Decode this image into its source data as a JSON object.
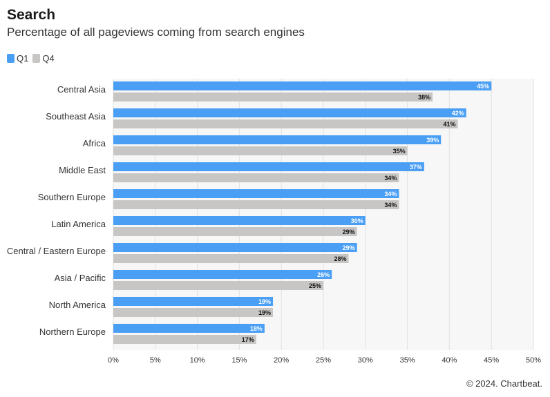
{
  "header": {
    "title": "Search",
    "subtitle": "Percentage of all pageviews coming from search engines"
  },
  "footer": {
    "credit": "© 2024. Chartbeat."
  },
  "colors": {
    "q1": "#4a9ff5",
    "q4": "#c8c6c4",
    "plot_bg": "#f7f7f7",
    "grid": "#e2e2e2"
  },
  "chart_data": {
    "type": "bar",
    "orientation": "horizontal",
    "title": "Search",
    "subtitle": "Percentage of all pageviews coming from search engines",
    "categories": [
      "Central Asia",
      "Southeast Asia",
      "Africa",
      "Middle East",
      "Southern Europe",
      "Latin America",
      "Central / Eastern Europe",
      "Asia / Pacific",
      "North America",
      "Northern Europe"
    ],
    "series": [
      {
        "name": "Q1",
        "color": "#4a9ff5",
        "values": [
          45,
          42,
          39,
          37,
          34,
          30,
          29,
          26,
          19,
          18
        ]
      },
      {
        "name": "Q4",
        "color": "#c8c6c4",
        "values": [
          38,
          41,
          35,
          34,
          34,
          29,
          28,
          25,
          19,
          17
        ]
      }
    ],
    "xlim": [
      0,
      50
    ],
    "xticks": [
      "0%",
      "5%",
      "10%",
      "15%",
      "20%",
      "25%",
      "30%",
      "35%",
      "40%",
      "45%",
      "50%"
    ],
    "value_suffix": "%",
    "grid": true,
    "legend_position": "top-left"
  }
}
